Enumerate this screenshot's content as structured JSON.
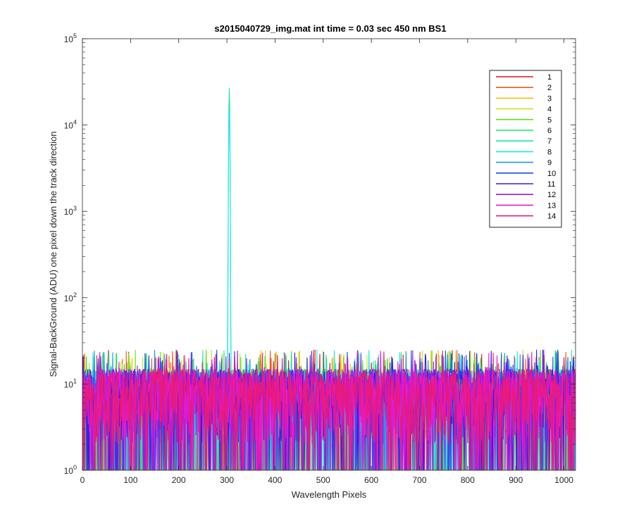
{
  "chart_data": {
    "type": "line",
    "title": "s2015040729_img.mat int time = 0.03 sec  450 nm BS1",
    "xlabel": "Wavelength Pixels",
    "ylabel": "Signal-BackGround (ADU) one pixel down the track direction",
    "xlim": [
      0,
      1024
    ],
    "ylim": [
      1,
      100000
    ],
    "yscale": "log",
    "x_ticks": [
      "0",
      "100",
      "200",
      "300",
      "400",
      "500",
      "600",
      "700",
      "800",
      "900",
      "1000"
    ],
    "y_ticks": [
      {
        "base": "10",
        "exp": "0"
      },
      {
        "base": "10",
        "exp": "1"
      },
      {
        "base": "10",
        "exp": "2"
      },
      {
        "base": "10",
        "exp": "3"
      },
      {
        "base": "10",
        "exp": "4"
      },
      {
        "base": "10",
        "exp": "5"
      }
    ],
    "legend_position": "top-right",
    "grid": false,
    "noise": {
      "min": 1,
      "max": 25,
      "typical_range": [
        2,
        15
      ]
    },
    "peak": {
      "x": 305,
      "y": 27000,
      "series": [
        "7",
        "8"
      ]
    },
    "series": [
      {
        "name": "1",
        "color": "#e5141b"
      },
      {
        "name": "2",
        "color": "#f05a14"
      },
      {
        "name": "3",
        "color": "#f4c200"
      },
      {
        "name": "4",
        "color": "#c4e81a"
      },
      {
        "name": "5",
        "color": "#5ce81a"
      },
      {
        "name": "6",
        "color": "#1ae85a"
      },
      {
        "name": "7",
        "color": "#1ae8a8"
      },
      {
        "name": "8",
        "color": "#1ae8e8"
      },
      {
        "name": "9",
        "color": "#1a9ae8"
      },
      {
        "name": "10",
        "color": "#1a4ce8"
      },
      {
        "name": "11",
        "color": "#3a1ae8"
      },
      {
        "name": "12",
        "color": "#9a1ae8"
      },
      {
        "name": "13",
        "color": "#e81ad2"
      },
      {
        "name": "14",
        "color": "#e81a7a"
      }
    ]
  }
}
